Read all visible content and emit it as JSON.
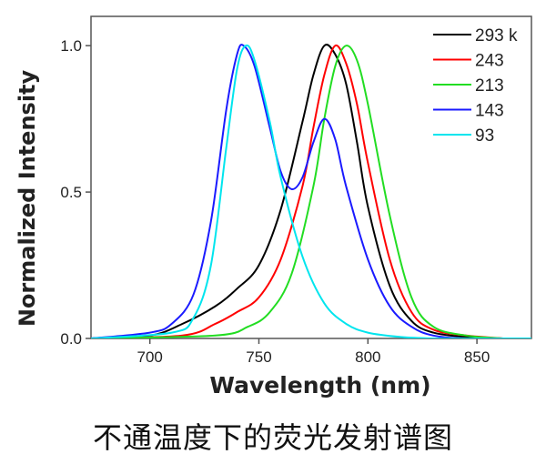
{
  "caption": "不通温度下的荧光发射谱图",
  "chart_data": {
    "type": "line",
    "xlabel": "Wavelength (nm)",
    "ylabel": "Normalized Intensity",
    "xlim": [
      673,
      875
    ],
    "ylim": [
      0,
      1.1
    ],
    "xticks": [
      700,
      750,
      800,
      850
    ],
    "yticks": [
      0.0,
      0.5,
      1.0
    ],
    "xtick_labels": [
      "700",
      "750",
      "800",
      "850"
    ],
    "ytick_labels": [
      "0.0",
      "0.5",
      "1.0"
    ],
    "legend_position": "top-right",
    "series": [
      {
        "name": "293 k",
        "color": "#000000",
        "x": [
          673,
          700,
          715,
          730,
          740,
          750,
          760,
          770,
          775,
          780,
          785,
          790,
          795,
          800,
          810,
          820,
          830,
          845,
          862
        ],
        "y": [
          0.0,
          0.01,
          0.05,
          0.11,
          0.17,
          0.25,
          0.44,
          0.74,
          0.9,
          1.0,
          0.97,
          0.87,
          0.67,
          0.45,
          0.18,
          0.06,
          0.02,
          0.005,
          0.0
        ]
      },
      {
        "name": "243",
        "color": "#ff0000",
        "x": [
          673,
          715,
          730,
          740,
          750,
          760,
          770,
          775,
          780,
          785,
          790,
          795,
          800,
          810,
          820,
          830,
          845,
          862
        ],
        "y": [
          0.0,
          0.01,
          0.05,
          0.09,
          0.14,
          0.27,
          0.52,
          0.72,
          0.9,
          1.0,
          0.94,
          0.8,
          0.6,
          0.27,
          0.09,
          0.03,
          0.01,
          0.0
        ]
      },
      {
        "name": "213",
        "color": "#22dd22",
        "x": [
          673,
          730,
          745,
          755,
          765,
          775,
          780,
          785,
          790,
          795,
          800,
          810,
          820,
          830,
          845,
          862
        ],
        "y": [
          0.0,
          0.01,
          0.04,
          0.09,
          0.22,
          0.52,
          0.75,
          0.93,
          1.0,
          0.95,
          0.8,
          0.42,
          0.14,
          0.04,
          0.01,
          0.0
        ]
      },
      {
        "name": "143",
        "color": "#1a1aff",
        "x": [
          673,
          700,
          710,
          720,
          728,
          735,
          740,
          743,
          748,
          755,
          760,
          765,
          770,
          775,
          780,
          785,
          790,
          800,
          810,
          820,
          830,
          845,
          875
        ],
        "y": [
          0.0,
          0.02,
          0.05,
          0.15,
          0.4,
          0.78,
          0.97,
          1.0,
          0.93,
          0.72,
          0.57,
          0.51,
          0.55,
          0.67,
          0.75,
          0.68,
          0.52,
          0.27,
          0.11,
          0.04,
          0.01,
          0.0,
          0.0
        ]
      },
      {
        "name": "93",
        "color": "#00e5ee",
        "x": [
          673,
          710,
          720,
          728,
          735,
          740,
          744,
          748,
          755,
          760,
          770,
          780,
          790,
          800,
          815,
          830,
          850,
          875
        ],
        "y": [
          0.0,
          0.02,
          0.07,
          0.25,
          0.65,
          0.92,
          1.0,
          0.95,
          0.74,
          0.55,
          0.28,
          0.12,
          0.05,
          0.02,
          0.005,
          0.0,
          0.0,
          0.0
        ]
      }
    ]
  }
}
